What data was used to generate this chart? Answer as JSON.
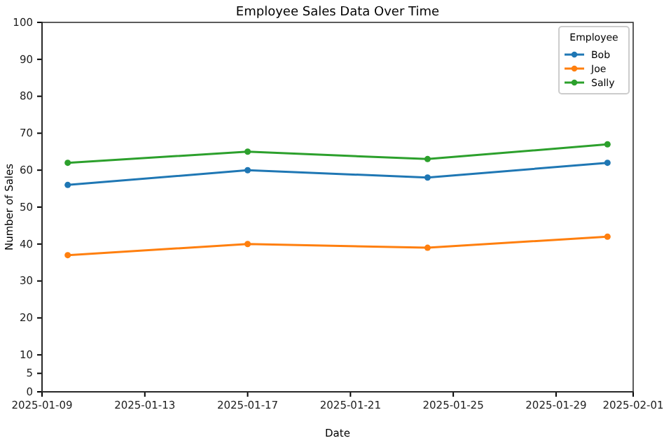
{
  "chart_data": {
    "type": "line",
    "title": "Employee Sales Data Over Time",
    "xlabel": "Date",
    "ylabel": "Number of Sales",
    "legend_title": "Employee",
    "x": [
      "2025-01-10",
      "2025-01-17",
      "2025-01-24",
      "2025-01-31"
    ],
    "series": [
      {
        "name": "Bob",
        "color": "#1f77b4",
        "values": [
          56,
          60,
          58,
          62
        ]
      },
      {
        "name": "Joe",
        "color": "#ff7f0e",
        "values": [
          37,
          40,
          39,
          42
        ]
      },
      {
        "name": "Sally",
        "color": "#2ca02c",
        "values": [
          62,
          65,
          63,
          67
        ]
      }
    ],
    "xlim": [
      "2025-01-09",
      "2025-02-01"
    ],
    "xticks": [
      "2025-01-09",
      "2025-01-13",
      "2025-01-17",
      "2025-01-21",
      "2025-01-25",
      "2025-01-29",
      "2025-02-01"
    ],
    "ylim": [
      0,
      100
    ],
    "yticks": [
      0,
      5,
      10,
      20,
      30,
      40,
      50,
      60,
      70,
      80,
      90,
      100
    ],
    "marker": "circle",
    "legend": "top right",
    "grid": false
  }
}
